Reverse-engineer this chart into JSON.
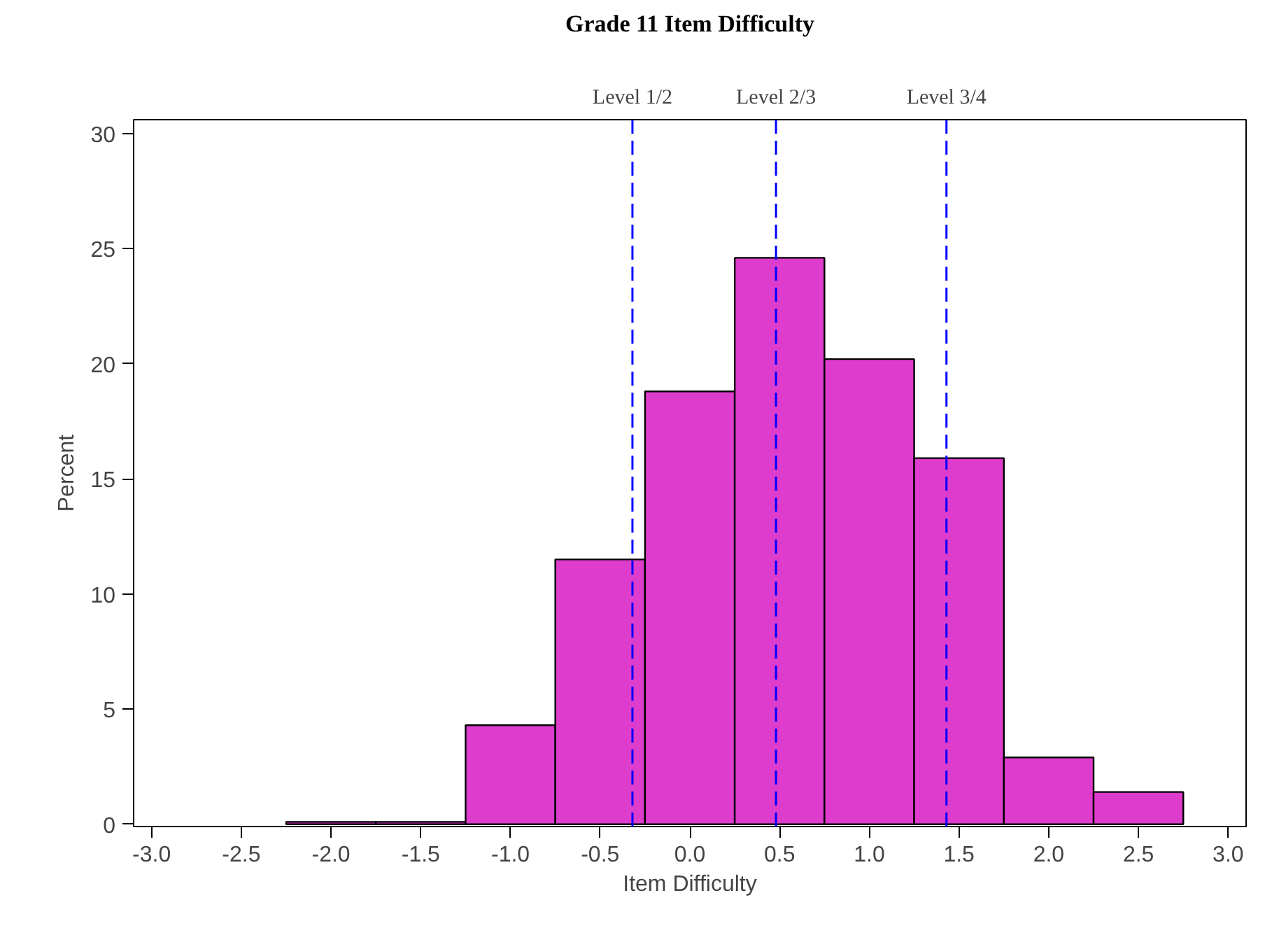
{
  "chart_data": {
    "type": "histogram",
    "title": "Grade 11 Item Difficulty",
    "xlabel": "Item Difficulty",
    "ylabel": "Percent",
    "bins": [
      -2.25,
      -1.75,
      -1.25,
      -0.75,
      -0.25,
      0.25,
      0.75,
      1.25,
      1.75,
      2.25,
      2.75
    ],
    "values": [
      0.1,
      0.1,
      4.3,
      11.5,
      18.8,
      24.6,
      20.2,
      15.9,
      2.9,
      1.4
    ],
    "color": "#dd3ccc",
    "xlim": [
      -3.1,
      3.1
    ],
    "ylim": [
      -0.1,
      30.6
    ],
    "xticks": [
      {
        "value": -3.0,
        "label": "-3.0"
      },
      {
        "value": -2.5,
        "label": "-2.5"
      },
      {
        "value": -2.0,
        "label": "-2.0"
      },
      {
        "value": -1.5,
        "label": "-1.5"
      },
      {
        "value": -1.0,
        "label": "-1.0"
      },
      {
        "value": -0.5,
        "label": "-0.5"
      },
      {
        "value": 0.0,
        "label": "0.0"
      },
      {
        "value": 0.5,
        "label": "0.5"
      },
      {
        "value": 1.0,
        "label": "1.0"
      },
      {
        "value": 1.5,
        "label": "1.5"
      },
      {
        "value": 2.0,
        "label": "2.0"
      },
      {
        "value": 2.5,
        "label": "2.5"
      },
      {
        "value": 3.0,
        "label": "3.0"
      }
    ],
    "yticks": [
      0,
      5,
      10,
      15,
      20,
      25,
      30
    ],
    "ref_lines": [
      {
        "axis": "x",
        "value": -0.32,
        "label": "Level 1/2",
        "color": "#0000ff",
        "line_style": "dashed"
      },
      {
        "axis": "x",
        "value": 0.48,
        "label": "Level 2/3",
        "color": "#0000ff",
        "line_style": "dashed"
      },
      {
        "axis": "x",
        "value": 1.43,
        "label": "Level 3/4",
        "color": "#0000ff",
        "line_style": "dashed"
      }
    ],
    "grid": false
  }
}
